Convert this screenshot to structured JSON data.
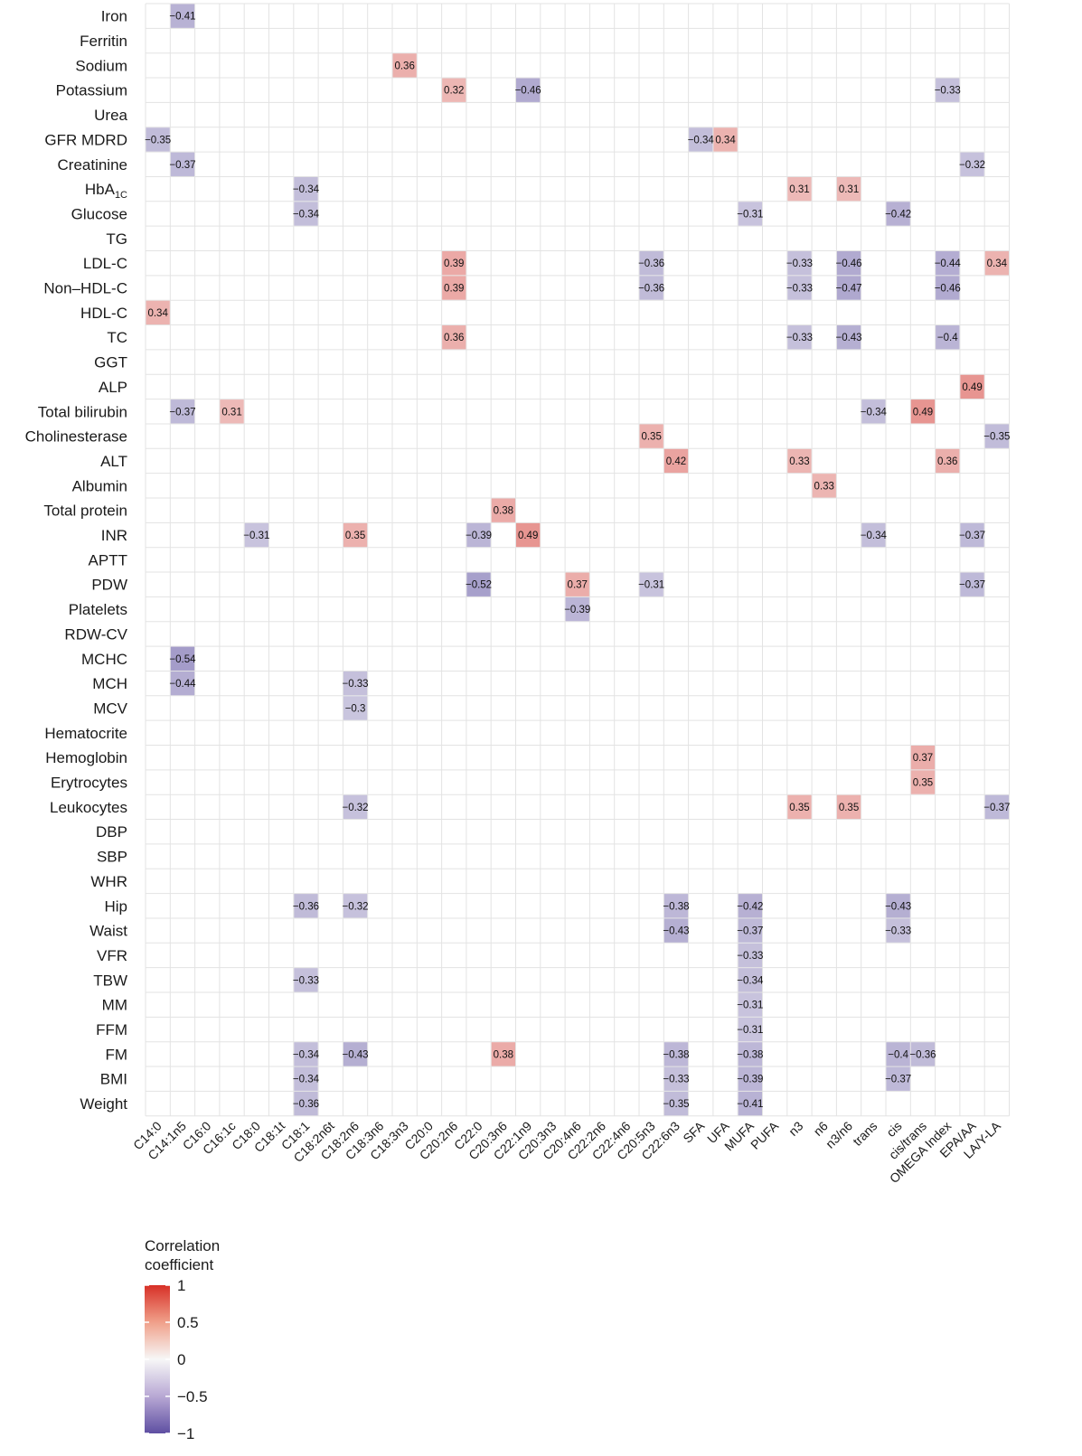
{
  "chart_data": {
    "type": "heatmap",
    "rows": [
      "Iron",
      "Ferritin",
      "Sodium",
      "Potassium",
      "Urea",
      "GFR MDRD",
      "Creatinine",
      "HbA1C",
      "Glucose",
      "TG",
      "LDL-C",
      "Non–HDL-C",
      "HDL-C",
      "TC",
      "GGT",
      "ALP",
      "Total bilirubin",
      "Cholinesterase",
      "ALT",
      "Albumin",
      "Total protein",
      "INR",
      "APTT",
      "PDW",
      "Platelets",
      "RDW-CV",
      "MCHC",
      "MCH",
      "MCV",
      "Hematocrite",
      "Hemoglobin",
      "Erytrocytes",
      "Leukocytes",
      "DBP",
      "SBP",
      "WHR",
      "Hip",
      "Waist",
      "VFR",
      "TBW",
      "MM",
      "FFM",
      "FM",
      "BMI",
      "Weight"
    ],
    "columns": [
      "C14:0",
      "C14:1n5",
      "C16:0",
      "C16:1c",
      "C18:0",
      "C18:1t",
      "C18:1",
      "C18:2n6t",
      "C18:2n6",
      "C18:3n6",
      "C18:3n3",
      "C20:0",
      "C20:2n6",
      "C22:0",
      "C20:3n6",
      "C22:1n9",
      "C20:3n3",
      "C20:4n6",
      "C22:2n6",
      "C22:4n6",
      "C20:5n3",
      "C22:6n3",
      "SFA",
      "UFA",
      "MUFA",
      "PUFA",
      "n3",
      "n6",
      "n3/n6",
      "trans",
      "cis",
      "cis/trans",
      "OMEGA Index",
      "EPA/AA",
      "LA/Y-LA"
    ],
    "values": [
      [
        "Iron",
        "C14:1n5",
        -0.41
      ],
      [
        "Sodium",
        "C18:3n3",
        0.36
      ],
      [
        "Potassium",
        "C20:2n6",
        0.32
      ],
      [
        "Potassium",
        "C22:1n9",
        -0.46
      ],
      [
        "Potassium",
        "OMEGA Index",
        -0.33
      ],
      [
        "GFR MDRD",
        "C14:0",
        -0.35
      ],
      [
        "GFR MDRD",
        "SFA",
        -0.34
      ],
      [
        "GFR MDRD",
        "UFA",
        0.34
      ],
      [
        "Creatinine",
        "C14:1n5",
        -0.37
      ],
      [
        "Creatinine",
        "EPA/AA",
        -0.32
      ],
      [
        "HbA1C",
        "C18:1",
        -0.34
      ],
      [
        "HbA1C",
        "n3",
        0.31
      ],
      [
        "HbA1C",
        "n3/n6",
        0.31
      ],
      [
        "Glucose",
        "C18:1",
        -0.34
      ],
      [
        "Glucose",
        "MUFA",
        -0.31
      ],
      [
        "Glucose",
        "cis",
        -0.42
      ],
      [
        "LDL-C",
        "C20:2n6",
        0.39
      ],
      [
        "LDL-C",
        "C20:5n3",
        -0.36
      ],
      [
        "LDL-C",
        "n3",
        -0.33
      ],
      [
        "LDL-C",
        "n3/n6",
        -0.46
      ],
      [
        "LDL-C",
        "OMEGA Index",
        -0.44
      ],
      [
        "LDL-C",
        "LA/Y-LA",
        0.34
      ],
      [
        "Non–HDL-C",
        "C20:2n6",
        0.39
      ],
      [
        "Non–HDL-C",
        "C20:5n3",
        -0.36
      ],
      [
        "Non–HDL-C",
        "n3",
        -0.33
      ],
      [
        "Non–HDL-C",
        "n3/n6",
        -0.47
      ],
      [
        "Non–HDL-C",
        "OMEGA Index",
        -0.46
      ],
      [
        "HDL-C",
        "C14:0",
        0.34
      ],
      [
        "TC",
        "C20:2n6",
        0.36
      ],
      [
        "TC",
        "n3",
        -0.33
      ],
      [
        "TC",
        "n3/n6",
        -0.43
      ],
      [
        "TC",
        "OMEGA Index",
        -0.4
      ],
      [
        "ALP",
        "EPA/AA",
        0.49
      ],
      [
        "Total bilirubin",
        "C14:1n5",
        -0.37
      ],
      [
        "Total bilirubin",
        "C16:1c",
        0.31
      ],
      [
        "Total bilirubin",
        "trans",
        -0.34
      ],
      [
        "Total bilirubin",
        "cis/trans",
        0.49
      ],
      [
        "Cholinesterase",
        "C20:5n3",
        0.35
      ],
      [
        "Cholinesterase",
        "LA/Y-LA",
        -0.35
      ],
      [
        "ALT",
        "C22:6n3",
        0.42
      ],
      [
        "ALT",
        "n3",
        0.33
      ],
      [
        "ALT",
        "OMEGA Index",
        0.36
      ],
      [
        "Albumin",
        "n6",
        0.33
      ],
      [
        "Total protein",
        "C20:3n6",
        0.38
      ],
      [
        "INR",
        "C18:0",
        -0.31
      ],
      [
        "INR",
        "C18:2n6",
        0.35
      ],
      [
        "INR",
        "C22:0",
        -0.39
      ],
      [
        "INR",
        "C22:1n9",
        0.49
      ],
      [
        "INR",
        "trans",
        -0.34
      ],
      [
        "INR",
        "EPA/AA",
        -0.37
      ],
      [
        "PDW",
        "C22:0",
        -0.52
      ],
      [
        "PDW",
        "C20:4n6",
        0.37
      ],
      [
        "PDW",
        "C20:5n3",
        -0.31
      ],
      [
        "PDW",
        "EPA/AA",
        -0.37
      ],
      [
        "Platelets",
        "C20:4n6",
        -0.39
      ],
      [
        "MCHC",
        "C14:1n5",
        -0.54
      ],
      [
        "MCH",
        "C14:1n5",
        -0.44
      ],
      [
        "MCH",
        "C18:2n6",
        -0.33
      ],
      [
        "MCV",
        "C18:2n6",
        -0.3
      ],
      [
        "Hemoglobin",
        "cis/trans",
        0.37
      ],
      [
        "Erytrocytes",
        "cis/trans",
        0.35
      ],
      [
        "Leukocytes",
        "C18:2n6",
        -0.32
      ],
      [
        "Leukocytes",
        "n3",
        0.35
      ],
      [
        "Leukocytes",
        "n3/n6",
        0.35
      ],
      [
        "Leukocytes",
        "LA/Y-LA",
        -0.37
      ],
      [
        "Hip",
        "C18:1",
        -0.36
      ],
      [
        "Hip",
        "C18:2n6",
        -0.32
      ],
      [
        "Hip",
        "C22:6n3",
        -0.38
      ],
      [
        "Hip",
        "MUFA",
        -0.42
      ],
      [
        "Hip",
        "cis",
        -0.43
      ],
      [
        "Waist",
        "C22:6n3",
        -0.43
      ],
      [
        "Waist",
        "MUFA",
        -0.37
      ],
      [
        "Waist",
        "cis",
        -0.33
      ],
      [
        "VFR",
        "MUFA",
        -0.33
      ],
      [
        "TBW",
        "C18:1",
        -0.33
      ],
      [
        "TBW",
        "MUFA",
        -0.34
      ],
      [
        "MM",
        "MUFA",
        -0.31
      ],
      [
        "FFM",
        "MUFA",
        -0.31
      ],
      [
        "FM",
        "C18:1",
        -0.34
      ],
      [
        "FM",
        "C18:2n6",
        -0.43
      ],
      [
        "FM",
        "C20:3n6",
        0.38
      ],
      [
        "FM",
        "C22:6n3",
        -0.38
      ],
      [
        "FM",
        "MUFA",
        -0.38
      ],
      [
        "FM",
        "cis",
        -0.4
      ],
      [
        "FM",
        "cis/trans",
        -0.36
      ],
      [
        "BMI",
        "C18:1",
        -0.34
      ],
      [
        "BMI",
        "C22:6n3",
        -0.33
      ],
      [
        "BMI",
        "MUFA",
        -0.39
      ],
      [
        "BMI",
        "cis",
        -0.37
      ],
      [
        "Weight",
        "C18:1",
        -0.36
      ],
      [
        "Weight",
        "C22:6n3",
        -0.35
      ],
      [
        "Weight",
        "MUFA",
        -0.41
      ]
    ],
    "legend": {
      "title_line1": "Correlation",
      "title_line2": "coefficient",
      "ticks": [
        1,
        0.5,
        0,
        -0.5,
        -1
      ],
      "tick_labels": [
        "1",
        "0.5",
        "0",
        "−0.5",
        "−1"
      ],
      "colors": {
        "high": "#d73027",
        "mid": "#f7f7f7",
        "low": "#5e4fa2"
      }
    },
    "grid": true
  }
}
